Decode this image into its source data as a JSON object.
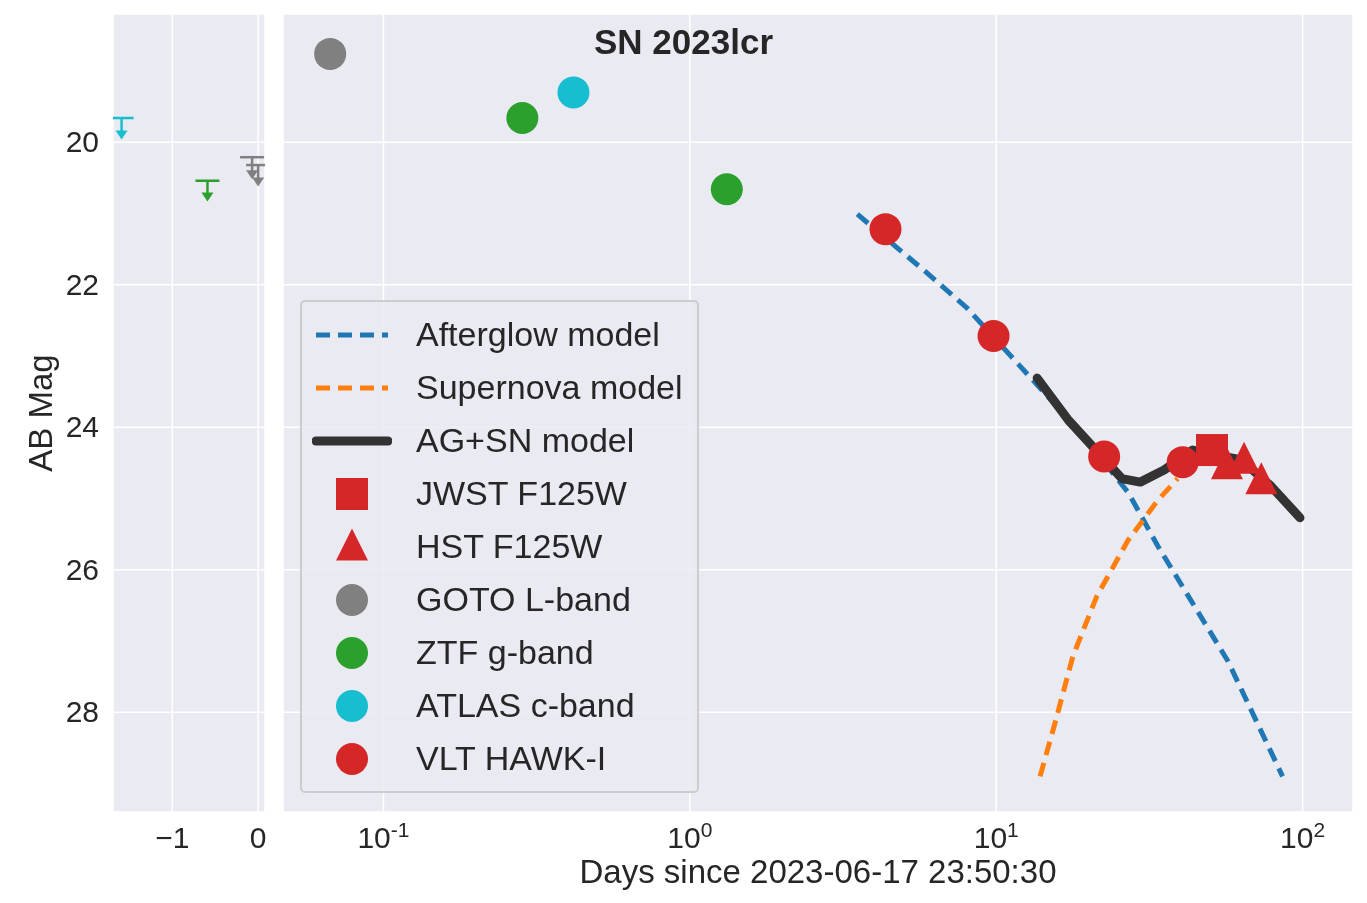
{
  "chart_data": [
    {
      "type": "scatter",
      "ylabel": "AB Mag",
      "xlim": [
        -1.69,
        0.08
      ],
      "xticks": [
        {
          "value": -1,
          "label": "−1"
        },
        0
      ],
      "ylim": [
        29.4,
        18.2
      ],
      "yticks": [
        20,
        22,
        24,
        26,
        28
      ],
      "grid": true,
      "series": [
        {
          "color": "#17becf",
          "x": [
            -1.59
          ],
          "values": [
            19.89
          ],
          "errors": [
            [
              19.66,
              19.89
            ]
          ]
        },
        {
          "color": "#2ca02c",
          "x": [
            -0.59
          ],
          "values": [
            20.76
          ],
          "errors": [
            [
              20.54,
              20.76
            ]
          ]
        },
        {
          "color": "#808080",
          "x": [
            -0.07,
            0.0
          ],
          "values": [
            20.45,
            20.55
          ],
          "errors": [
            [
              20.21,
              20.45
            ],
            [
              20.32,
              20.55
            ]
          ]
        }
      ]
    },
    {
      "type": "scatter",
      "title": "SN 2023lcr",
      "xlabel": "Days since 2023-06-17 23:50:30",
      "log": "x",
      "xlim": [
        0.047,
        146
      ],
      "xticks": [
        {
          "value": 0.1,
          "label": "10$^{-1}$"
        },
        {
          "value": 1,
          "label": "10$^{0}$"
        },
        {
          "value": 10,
          "label": "10$^{1}$"
        },
        {
          "value": 100,
          "label": "10$^{2}$"
        }
      ],
      "ylim": [
        29.4,
        18.2
      ],
      "yticks": [
        20,
        22,
        24,
        26,
        28
      ],
      "tick_labels": "x",
      "grid": true,
      "legend": "bottom left",
      "series": [
        {
          "name": "Afterglow model",
          "type": "line",
          "line_style": "dashed",
          "color": "#1f77b4",
          "x": [
            3.52,
            5.89,
            8.0,
            14.6,
            19,
            27,
            33.6,
            57,
            86
          ],
          "values": [
            21.01,
            21.82,
            22.32,
            23.55,
            24.1,
            24.92,
            25.66,
            27.28,
            28.9
          ]
        },
        {
          "name": "Supernova model",
          "type": "line",
          "line_style": "dashed",
          "color": "#ff7f0e",
          "x": [
            13.9,
            15.6,
            17.8,
            21.3,
            26.9,
            33.6,
            39.1
          ],
          "values": [
            28.9,
            28.13,
            27.21,
            26.37,
            25.59,
            25.03,
            24.72
          ]
        },
        {
          "name": "AG+SN model",
          "type": "line",
          "line_style": "solid",
          "color": "#333333",
          "x": [
            13.6,
            17.2,
            25.7,
            29.5,
            35.3,
            43.8,
            63,
            78.6,
            98
          ],
          "values": [
            23.31,
            23.9,
            24.72,
            24.77,
            24.6,
            24.32,
            24.46,
            24.82,
            25.27
          ]
        },
        {
          "name": "JWST F125W",
          "marker": "square",
          "color": "#d62728",
          "x": [
            50.6
          ],
          "values": [
            24.32
          ]
        },
        {
          "name": "HST F125W",
          "marker": "triangle",
          "color": "#d62728",
          "x": [
            56.6,
            64.4,
            73.3
          ],
          "values": [
            24.54,
            24.46,
            24.75
          ]
        },
        {
          "name": "GOTO L-band",
          "marker": "circle",
          "color": "#808080",
          "x": [
            0.067
          ],
          "values": [
            18.76
          ]
        },
        {
          "name": "ZTF g-band",
          "marker": "circle",
          "color": "#2ca02c",
          "x": [
            0.284,
            1.32
          ],
          "values": [
            19.66,
            20.66
          ]
        },
        {
          "name": "ATLAS c-band",
          "marker": "circle",
          "color": "#17becf",
          "x": [
            0.417
          ],
          "values": [
            19.3
          ]
        },
        {
          "name": "VLT HAWK-I",
          "marker": "circle",
          "color": "#d62728",
          "x": [
            4.35,
            9.8,
            22.5,
            40.6
          ],
          "values": [
            21.22,
            22.72,
            24.41,
            24.49
          ]
        }
      ]
    }
  ]
}
